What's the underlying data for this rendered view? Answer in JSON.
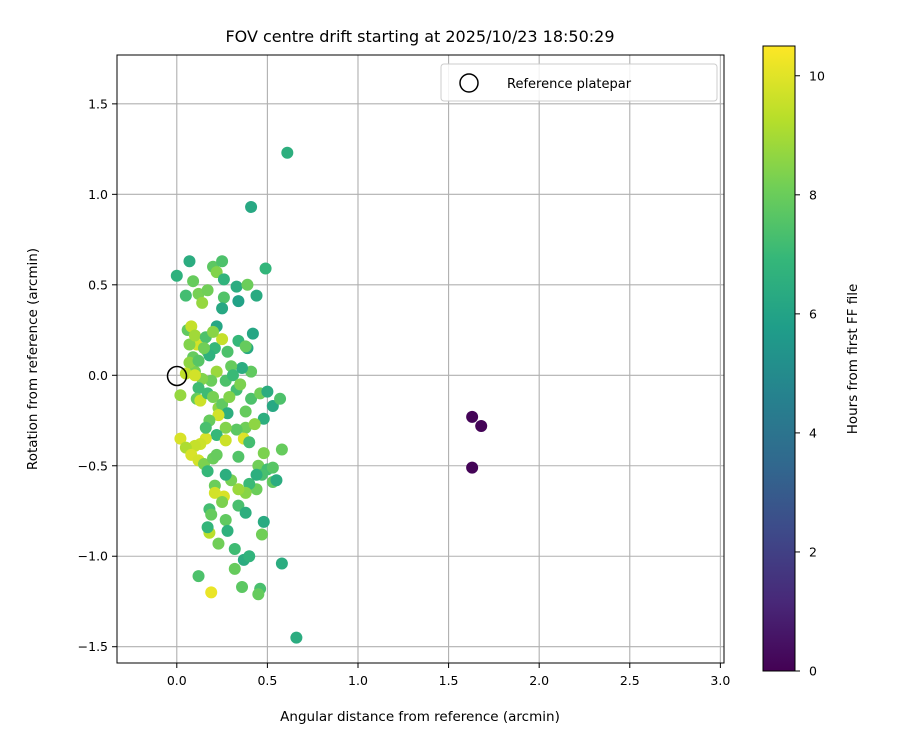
{
  "chart_data": {
    "type": "scatter",
    "title": "FOV centre drift starting at 2025/10/23 18:50:29",
    "xlabel": "Angular distance from reference (arcmin)",
    "ylabel": "Rotation from reference (arcmin)",
    "xlim": [
      -0.33,
      3.02
    ],
    "ylim": [
      -1.59,
      1.77
    ],
    "xticks": [
      "0.0",
      "0.5",
      "1.0",
      "1.5",
      "2.0",
      "2.5",
      "3.0"
    ],
    "xtick_values": [
      0,
      0.5,
      1.0,
      1.5,
      2.0,
      2.5,
      3.0
    ],
    "yticks": [
      "1.5",
      "1.0",
      "0.5",
      "0.0",
      "−0.5",
      "−1.0",
      "−1.5"
    ],
    "ytick_values": [
      1.5,
      1.0,
      0.5,
      0.0,
      -0.5,
      -1.0,
      -1.5
    ],
    "grid": true,
    "legend": {
      "label": "Reference platepar",
      "position": "top-right"
    },
    "reference_point": {
      "x": 0,
      "y": 0
    },
    "colorbar": {
      "label": "Hours from first FF file",
      "min": 0,
      "max": 10.5,
      "ticks": [
        "0",
        "2",
        "4",
        "6",
        "8",
        "10"
      ],
      "tick_values": [
        0,
        2,
        4,
        6,
        8,
        10
      ],
      "colormap": "viridis"
    },
    "colors": {
      "viridis": [
        "#440154",
        "#482878",
        "#3e4989",
        "#31688e",
        "#26828e",
        "#1f9e89",
        "#35b779",
        "#6ece58",
        "#b5de2b",
        "#fde725"
      ],
      "grid": "#b0b0b0",
      "axis": "#000000"
    },
    "points": [
      [
        1.63,
        -0.23,
        0.1
      ],
      [
        1.68,
        -0.28,
        0.1
      ],
      [
        1.63,
        -0.51,
        0.1
      ],
      [
        0.61,
        1.23,
        6.6
      ],
      [
        0.41,
        0.93,
        6.3
      ],
      [
        0.66,
        -1.45,
        6.5
      ],
      [
        0.0,
        0.55,
        6.7
      ],
      [
        0.05,
        0.44,
        7.3
      ],
      [
        0.07,
        0.63,
        6.5
      ],
      [
        0.09,
        0.52,
        8.0
      ],
      [
        0.12,
        0.45,
        8.3
      ],
      [
        0.14,
        0.4,
        8.8
      ],
      [
        0.17,
        0.47,
        8.2
      ],
      [
        0.2,
        0.6,
        7.8
      ],
      [
        0.22,
        0.57,
        8.5
      ],
      [
        0.25,
        0.63,
        7.5
      ],
      [
        0.26,
        0.53,
        6.8
      ],
      [
        0.26,
        0.43,
        7.6
      ],
      [
        0.25,
        0.37,
        6.3
      ],
      [
        0.33,
        0.49,
        6.5
      ],
      [
        0.34,
        0.41,
        6.0
      ],
      [
        0.39,
        0.5,
        8.1
      ],
      [
        0.44,
        0.44,
        6.4
      ],
      [
        0.49,
        0.59,
        6.9
      ],
      [
        0.42,
        0.23,
        6.2
      ],
      [
        0.06,
        0.25,
        7.9
      ],
      [
        0.08,
        0.27,
        9.6
      ],
      [
        0.11,
        0.17,
        9.8
      ],
      [
        0.07,
        0.17,
        8.5
      ],
      [
        0.09,
        0.1,
        8.0
      ],
      [
        0.1,
        0.02,
        8.3
      ],
      [
        0.07,
        0.07,
        8.7
      ],
      [
        0.12,
        0.08,
        7.7
      ],
      [
        0.17,
        0.13,
        8.0
      ],
      [
        0.21,
        0.15,
        7.0
      ],
      [
        0.22,
        0.27,
        6.2
      ],
      [
        0.25,
        0.2,
        9.6
      ],
      [
        0.28,
        0.13,
        7.5
      ],
      [
        0.34,
        0.19,
        7.0
      ],
      [
        0.39,
        0.15,
        6.3
      ],
      [
        0.41,
        0.02,
        7.9
      ],
      [
        0.36,
        0.04,
        6.5
      ],
      [
        0.3,
        0.05,
        8.0
      ],
      [
        0.27,
        -0.03,
        7.5
      ],
      [
        0.22,
        0.02,
        8.9
      ],
      [
        0.19,
        -0.03,
        8.1
      ],
      [
        0.14,
        -0.02,
        8.5
      ],
      [
        0.12,
        -0.07,
        7.2
      ],
      [
        0.05,
        0.01,
        9.5
      ],
      [
        0.1,
        0.0,
        9.8
      ],
      [
        0.02,
        -0.11,
        8.8
      ],
      [
        0.11,
        -0.13,
        8.0
      ],
      [
        0.13,
        -0.14,
        9.7
      ],
      [
        0.17,
        -0.1,
        7.2
      ],
      [
        0.2,
        -0.12,
        8.3
      ],
      [
        0.23,
        -0.18,
        8.7
      ],
      [
        0.25,
        -0.16,
        7.9
      ],
      [
        0.28,
        -0.21,
        6.6
      ],
      [
        0.33,
        -0.08,
        7.3
      ],
      [
        0.38,
        -0.2,
        8.0
      ],
      [
        0.41,
        -0.13,
        7.5
      ],
      [
        0.46,
        -0.1,
        8.2
      ],
      [
        0.5,
        -0.09,
        6.5
      ],
      [
        0.53,
        -0.17,
        6.3
      ],
      [
        0.57,
        -0.13,
        7.5
      ],
      [
        0.48,
        -0.24,
        6.6
      ],
      [
        0.38,
        -0.29,
        8.2
      ],
      [
        0.33,
        -0.3,
        7.8
      ],
      [
        0.27,
        -0.29,
        8.5
      ],
      [
        0.22,
        -0.33,
        7.0
      ],
      [
        0.16,
        -0.35,
        9.9
      ],
      [
        0.13,
        -0.38,
        9.7
      ],
      [
        0.1,
        -0.39,
        9.6
      ],
      [
        0.02,
        -0.35,
        9.9
      ],
      [
        0.05,
        -0.4,
        9.2
      ],
      [
        0.08,
        -0.44,
        9.9
      ],
      [
        0.12,
        -0.47,
        9.8
      ],
      [
        0.15,
        -0.49,
        8.4
      ],
      [
        0.17,
        -0.53,
        7.0
      ],
      [
        0.2,
        -0.46,
        8.1
      ],
      [
        0.22,
        -0.44,
        8.0
      ],
      [
        0.27,
        -0.36,
        9.7
      ],
      [
        0.34,
        -0.45,
        7.6
      ],
      [
        0.37,
        -0.35,
        10.0
      ],
      [
        0.4,
        -0.37,
        7.3
      ],
      [
        0.45,
        -0.5,
        8.2
      ],
      [
        0.48,
        -0.43,
        8.4
      ],
      [
        0.5,
        -0.52,
        7.3
      ],
      [
        0.53,
        -0.59,
        7.9
      ],
      [
        0.55,
        -0.58,
        6.5
      ],
      [
        0.58,
        -0.41,
        8.0
      ],
      [
        0.53,
        -0.51,
        7.7
      ],
      [
        0.47,
        -0.55,
        7.4
      ],
      [
        0.44,
        -0.63,
        8.1
      ],
      [
        0.4,
        -0.6,
        7.1
      ],
      [
        0.38,
        -0.65,
        8.6
      ],
      [
        0.34,
        -0.63,
        8.9
      ],
      [
        0.3,
        -0.58,
        8.3
      ],
      [
        0.27,
        -0.55,
        6.6
      ],
      [
        0.21,
        -0.61,
        8.1
      ],
      [
        0.21,
        -0.65,
        9.8
      ],
      [
        0.26,
        -0.67,
        9.9
      ],
      [
        0.25,
        -0.7,
        8.4
      ],
      [
        0.27,
        -0.8,
        7.9
      ],
      [
        0.34,
        -0.72,
        7.4
      ],
      [
        0.38,
        -0.76,
        6.6
      ],
      [
        0.48,
        -0.81,
        6.4
      ],
      [
        0.47,
        -0.88,
        8.2
      ],
      [
        0.28,
        -0.86,
        6.7
      ],
      [
        0.18,
        -0.87,
        9.4
      ],
      [
        0.18,
        -0.74,
        7.3
      ],
      [
        0.19,
        -0.77,
        8.0
      ],
      [
        0.17,
        -0.84,
        6.9
      ],
      [
        0.23,
        -0.93,
        8.2
      ],
      [
        0.32,
        -0.96,
        7.2
      ],
      [
        0.37,
        -1.02,
        6.5
      ],
      [
        0.4,
        -1.0,
        6.8
      ],
      [
        0.32,
        -1.07,
        8.0
      ],
      [
        0.58,
        -1.04,
        6.5
      ],
      [
        0.12,
        -1.11,
        7.5
      ],
      [
        0.36,
        -1.17,
        7.8
      ],
      [
        0.46,
        -1.18,
        7.4
      ],
      [
        0.45,
        -1.21,
        8.0
      ],
      [
        0.19,
        -1.2,
        10.2
      ],
      [
        0.1,
        0.22,
        9.0
      ],
      [
        0.16,
        0.21,
        7.5
      ],
      [
        0.2,
        0.24,
        8.6
      ],
      [
        0.38,
        0.16,
        8.0
      ],
      [
        0.18,
        0.11,
        6.7
      ],
      [
        0.15,
        0.15,
        8.2
      ],
      [
        0.31,
        0.0,
        7.1
      ],
      [
        0.35,
        -0.05,
        8.4
      ],
      [
        0.23,
        -0.22,
        9.8
      ],
      [
        0.18,
        -0.25,
        8.0
      ],
      [
        0.16,
        -0.29,
        7.4
      ],
      [
        0.29,
        -0.12,
        8.5
      ],
      [
        0.43,
        -0.27,
        8.7
      ],
      [
        0.44,
        -0.55,
        6.6
      ]
    ]
  }
}
